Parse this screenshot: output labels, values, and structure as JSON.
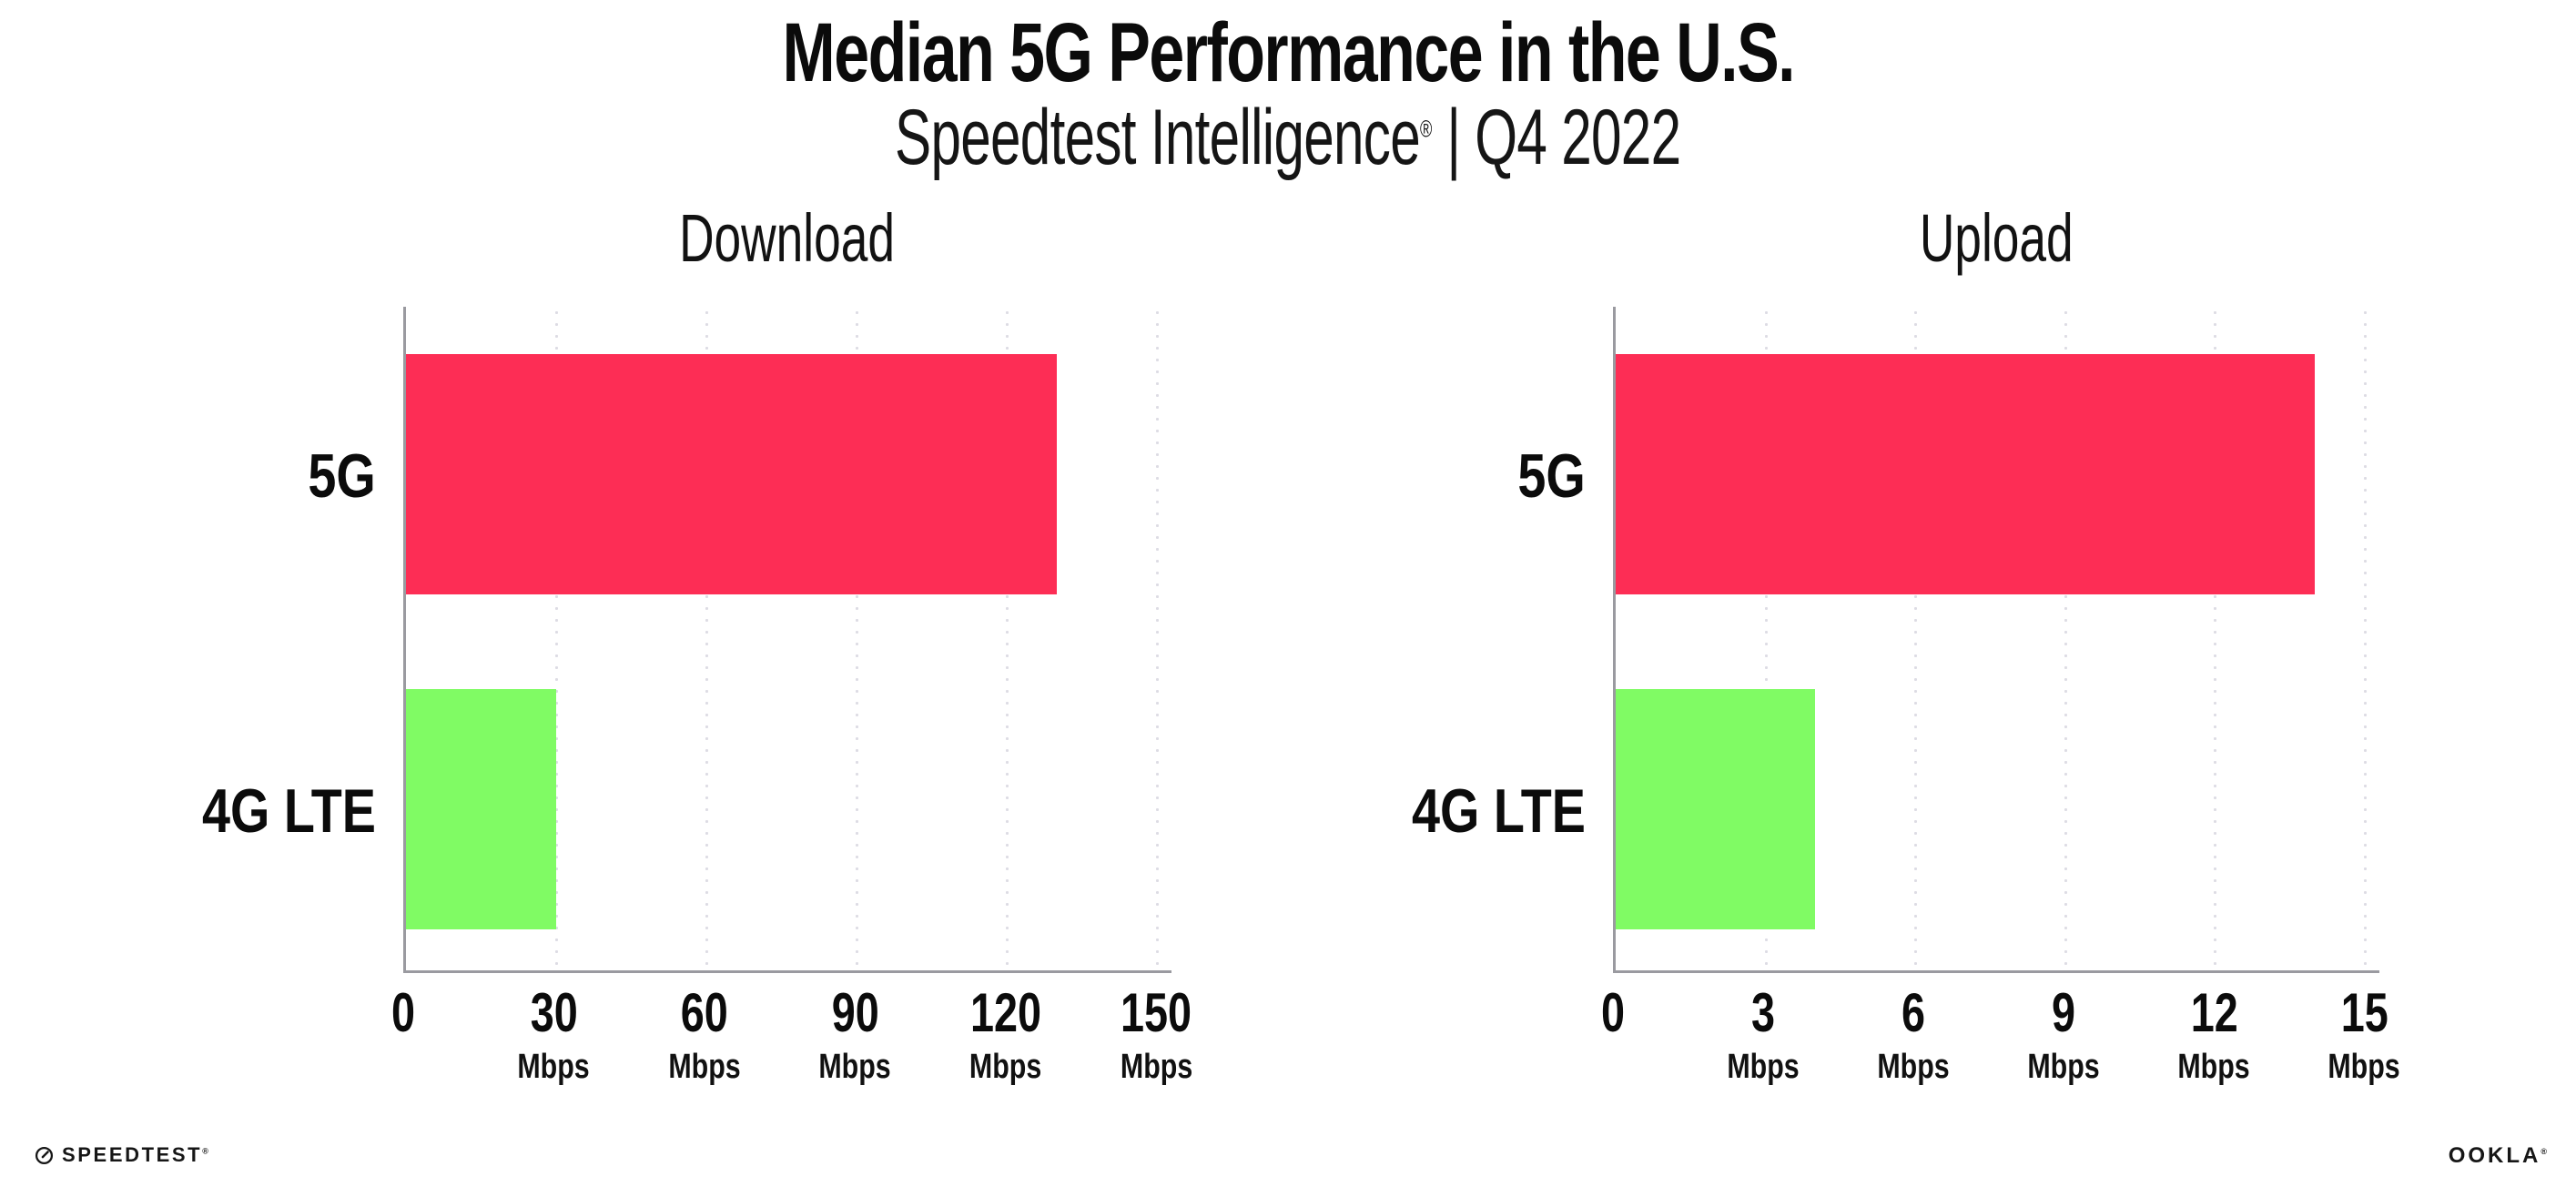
{
  "header": {
    "title": "Median 5G Performance in the U.S.",
    "subtitle_brand": "Speedtest Intelligence",
    "subtitle_reg": "®",
    "subtitle_rest": " | Q4 2022"
  },
  "footer": {
    "speedtest_text": "SPEEDTEST",
    "speedtest_reg": "®",
    "speedtest_icon": "speedometer-gauge-icon",
    "ookla_text": "OOKLA",
    "ookla_reg": "®"
  },
  "colors": {
    "bar_5g": "#FD2D55",
    "bar_4g_lte": "#80FB64",
    "axis": "#9a9aa0",
    "gridline_dots": "#dddce4",
    "text": "#0b0b0b"
  },
  "chart_data": [
    {
      "type": "bar",
      "orientation": "horizontal",
      "title": "Download",
      "categories": [
        "5G",
        "4G LTE"
      ],
      "values": [
        130,
        30
      ],
      "unit": "Mbps",
      "ticks": [
        0,
        30,
        60,
        90,
        120,
        150
      ],
      "tick_unit_label": "Mbps",
      "xlim": [
        0,
        153
      ],
      "colors": [
        "#FD2D55",
        "#80FB64"
      ],
      "grid": "dotted-vertical",
      "legend": "none"
    },
    {
      "type": "bar",
      "orientation": "horizontal",
      "title": "Upload",
      "categories": [
        "5G",
        "4G LTE"
      ],
      "values": [
        14,
        4
      ],
      "unit": "Mbps",
      "ticks": [
        0,
        3,
        6,
        9,
        12,
        15
      ],
      "tick_unit_label": "Mbps",
      "xlim": [
        0,
        15.3
      ],
      "colors": [
        "#FD2D55",
        "#80FB64"
      ],
      "grid": "dotted-vertical",
      "legend": "none"
    }
  ]
}
